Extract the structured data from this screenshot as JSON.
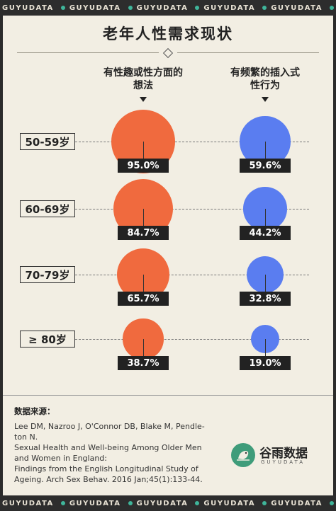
{
  "brand_strip": [
    "GUYUDATA",
    "GUYUDATA",
    "GUYUDATA",
    "GUYUDATA",
    "GUYUDATA",
    "GUYUDATA"
  ],
  "colors": {
    "orange": "#f06a3e",
    "blue": "#5a7df0",
    "background": "#f2eee3",
    "frame": "#2b2b2b",
    "brand_green": "#3fb59a"
  },
  "chart_data": {
    "type": "bubble",
    "title": "老年人性需求现状",
    "categories": [
      "50-59岁",
      "60-69岁",
      "70-79岁",
      "≥ 80岁"
    ],
    "series": [
      {
        "name": "有性趣或性方面的想法",
        "values": [
          95.0,
          84.7,
          65.7,
          38.7
        ],
        "labels": [
          "95.0%",
          "84.7%",
          "65.7%",
          "38.7%"
        ],
        "color": "#f06a3e"
      },
      {
        "name": "有频繁的插入式性行为",
        "values": [
          59.6,
          44.2,
          32.8,
          19.0
        ],
        "labels": [
          "59.6%",
          "44.2%",
          "32.8%",
          "19.0%"
        ],
        "color": "#5a7df0"
      }
    ]
  },
  "headers": {
    "col1_line1": "有性趣或性方面的",
    "col1_line2": "想法",
    "col2_line1": "有频繁的插入式",
    "col2_line2": "性行为"
  },
  "source": {
    "title": "数据来源：",
    "lines": [
      "Lee DM, Nazroo J, O'Connor DB, Blake M, Pendle-",
      "ton N.",
      "Sexual Health and Well-being Among Older Men",
      "and Women in England:",
      "Findings from the English Longitudinal Study of",
      "Ageing. Arch Sex Behav. 2016 Jan;45(1):133-44."
    ]
  },
  "logo": {
    "name": "谷雨数据",
    "sub": "GUYUDATA"
  }
}
